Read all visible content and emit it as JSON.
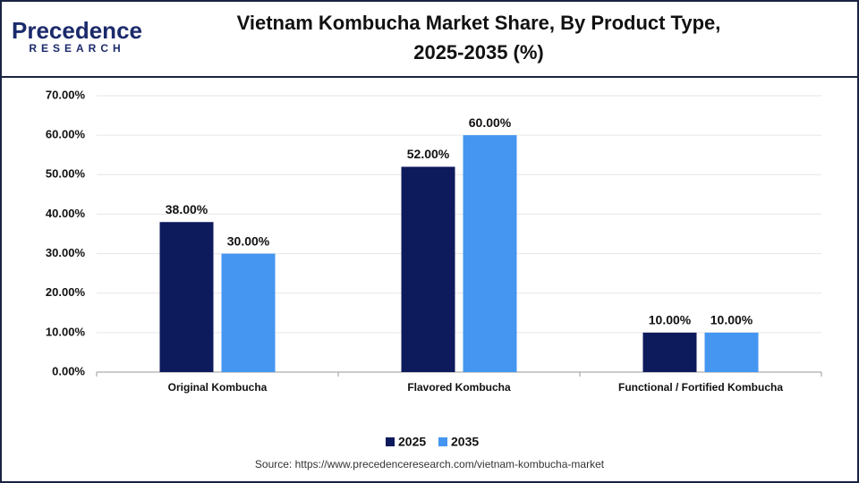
{
  "logo": {
    "name": "Precedence",
    "sub": "RESEARCH"
  },
  "source": "Source: https://www.precedenceresearch.com/vietnam-kombucha-market",
  "chart_data": {
    "type": "bar",
    "title": [
      "Vietnam Kombucha Market Share, By Product Type,",
      "2025-2035 (%)"
    ],
    "categories": [
      "Original Kombucha",
      "Flavored Kombucha",
      "Functional / Fortified Kombucha"
    ],
    "series": [
      {
        "name": "2025",
        "color": "#0d1a5c",
        "values": [
          38,
          52,
          10
        ],
        "value_labels": [
          "38.00%",
          "52.00%",
          "10.00%"
        ]
      },
      {
        "name": "2035",
        "color": "#4496f0",
        "values": [
          30,
          60,
          10
        ],
        "value_labels": [
          "30.00%",
          "60.00%",
          "10.00%"
        ]
      }
    ],
    "ylim": [
      0,
      70
    ],
    "yticks": [
      {
        "value": 0,
        "label": "0.00%"
      },
      {
        "value": 10,
        "label": "10.00%"
      },
      {
        "value": 20,
        "label": "20.00%"
      },
      {
        "value": 30,
        "label": "30.00%"
      },
      {
        "value": 40,
        "label": "40.00%"
      },
      {
        "value": 50,
        "label": "50.00%"
      },
      {
        "value": 60,
        "label": "60.00%"
      },
      {
        "value": 70,
        "label": "70.00%"
      }
    ],
    "grid": true,
    "legend": "bottom"
  }
}
